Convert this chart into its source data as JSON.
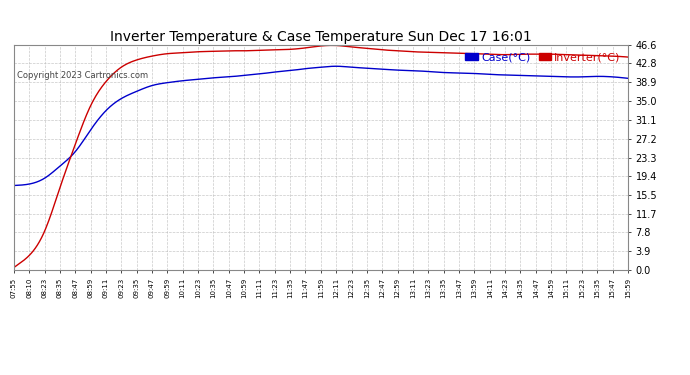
{
  "title": "Inverter Temperature & Case Temperature Sun Dec 17 16:01",
  "copyright": "Copyright 2023 Cartronics.com",
  "legend_case": "Case(°C)",
  "legend_inverter": "Inverter(°C)",
  "case_color": "#0000cc",
  "inverter_color": "#cc0000",
  "bg_color": "#ffffff",
  "plot_bg_color": "#ffffff",
  "grid_color": "#bbbbbb",
  "ylim": [
    0.0,
    46.6
  ],
  "yticks": [
    0.0,
    3.9,
    7.8,
    11.7,
    15.5,
    19.4,
    23.3,
    27.2,
    31.1,
    35.0,
    38.9,
    42.8,
    46.6
  ],
  "x_labels": [
    "07:55",
    "08:10",
    "08:23",
    "08:35",
    "08:47",
    "08:59",
    "09:11",
    "09:23",
    "09:35",
    "09:47",
    "09:59",
    "10:11",
    "10:23",
    "10:35",
    "10:47",
    "10:59",
    "11:11",
    "11:23",
    "11:35",
    "11:47",
    "11:59",
    "12:11",
    "12:23",
    "12:35",
    "12:47",
    "12:59",
    "13:11",
    "13:23",
    "13:35",
    "13:47",
    "13:59",
    "14:11",
    "14:23",
    "14:35",
    "14:47",
    "14:59",
    "15:11",
    "15:23",
    "15:35",
    "15:47",
    "15:59"
  ],
  "case_data": [
    17.5,
    17.8,
    19.0,
    21.5,
    24.5,
    29.0,
    33.0,
    35.5,
    37.0,
    38.2,
    38.8,
    39.2,
    39.5,
    39.8,
    40.0,
    40.3,
    40.6,
    41.0,
    41.3,
    41.7,
    42.0,
    42.2,
    42.0,
    41.8,
    41.6,
    41.4,
    41.3,
    41.1,
    40.9,
    40.8,
    40.7,
    40.5,
    40.4,
    40.3,
    40.2,
    40.1,
    40.0,
    40.0,
    40.1,
    40.0,
    39.7
  ],
  "inverter_data": [
    0.5,
    3.0,
    8.0,
    17.0,
    26.0,
    34.0,
    39.0,
    42.0,
    43.5,
    44.3,
    44.8,
    45.0,
    45.2,
    45.3,
    45.4,
    45.4,
    45.5,
    45.6,
    45.7,
    46.0,
    46.4,
    46.5,
    46.2,
    45.9,
    45.6,
    45.4,
    45.2,
    45.1,
    45.0,
    44.9,
    44.8,
    44.7,
    44.6,
    44.7,
    44.7,
    44.7,
    44.6,
    44.5,
    44.4,
    44.3,
    44.1
  ]
}
